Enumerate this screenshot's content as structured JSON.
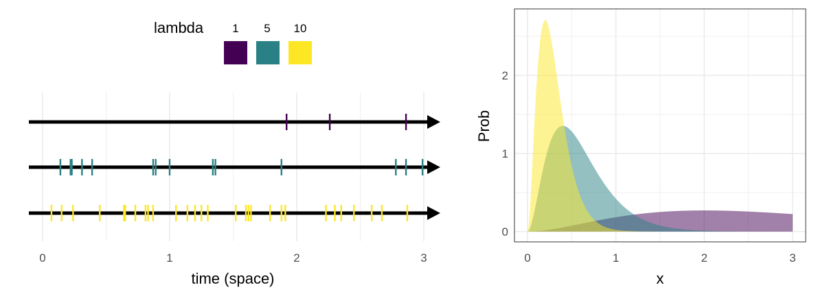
{
  "colors": {
    "lambda_1": "#440154",
    "lambda_5": "#2a8185",
    "lambda_10": "#fde725",
    "grid": "#ebebeb",
    "panel_border": "#333333",
    "timeline": "#000000"
  },
  "legend": {
    "title": "lambda",
    "entries": [
      {
        "label": "1",
        "color": "#440154"
      },
      {
        "label": "5",
        "color": "#2a8185"
      },
      {
        "label": "10",
        "color": "#fde725"
      }
    ],
    "placement": "top-left"
  },
  "chart_data": [
    {
      "type": "scatter",
      "xlabel": "time (space)",
      "ylabel": "",
      "xlim": [
        0,
        3
      ],
      "x_ticks": [
        "0",
        "1",
        "2",
        "3"
      ],
      "grid": true,
      "series": [
        {
          "name": "1",
          "events": [
            1.92,
            2.26,
            2.86
          ]
        },
        {
          "name": "5",
          "events": [
            0.14,
            0.22,
            0.23,
            0.31,
            0.39,
            0.87,
            0.89,
            1.0,
            1.34,
            1.36,
            1.88,
            2.78,
            2.86,
            2.99
          ]
        },
        {
          "name": "10",
          "events": [
            0.07,
            0.15,
            0.24,
            0.45,
            0.64,
            0.65,
            0.73,
            0.81,
            0.83,
            0.87,
            1.05,
            1.14,
            1.2,
            1.25,
            1.3,
            1.52,
            1.6,
            1.62,
            1.64,
            1.79,
            1.88,
            1.91,
            2.23,
            2.3,
            2.35,
            2.45,
            2.59,
            2.67,
            2.87
          ]
        }
      ]
    },
    {
      "type": "area",
      "xlabel": "x",
      "ylabel": "Prob",
      "xlim": [
        0,
        3
      ],
      "ylim": [
        0,
        2.8
      ],
      "x_ticks": [
        "0",
        "1",
        "2",
        "3"
      ],
      "y_ticks": [
        "0",
        "1",
        "2"
      ],
      "grid": true,
      "series": [
        {
          "name": "1",
          "shape": 3,
          "rate": 1
        },
        {
          "name": "5",
          "shape": 3,
          "rate": 5
        },
        {
          "name": "10",
          "shape": 3,
          "rate": 10
        }
      ]
    }
  ]
}
